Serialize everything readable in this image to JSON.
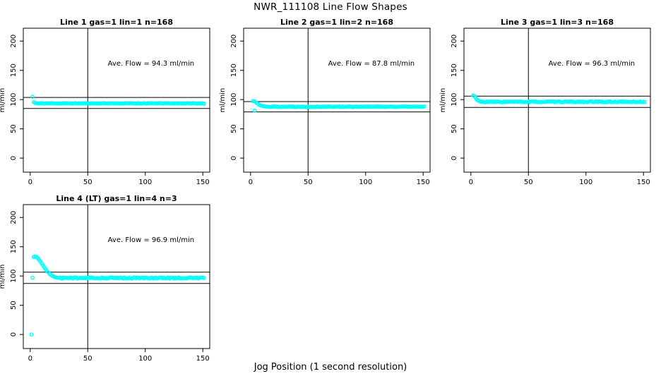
{
  "page": {
    "main_title": "NWR_111108  Line Flow Shapes",
    "x_axis_label": "Jog Position (1 second resolution)"
  },
  "colors": {
    "point": "#00ffff",
    "line": "#000000",
    "background": "#ffffff",
    "text": "#000000"
  },
  "chart_data": [
    {
      "type": "scatter",
      "title": "Line 1 gas=1 lin=1 n=168",
      "ylabel": "ml/min",
      "annotation": "Ave. Flow =  94.3  ml/min",
      "ave_flow_ml_min": 94.3,
      "xlim": [
        -6,
        156
      ],
      "ylim": [
        -24,
        222
      ],
      "xticks": [
        0,
        50,
        100,
        150
      ],
      "yticks": [
        0,
        50,
        100,
        150,
        200
      ],
      "vline_x": 50,
      "ref_lines_y": [
        103.7,
        84.9
      ],
      "annotation_xy": [
        105,
        158
      ],
      "points_explicit": [
        [
          2,
          105
        ],
        [
          3,
          95.5
        ],
        [
          4,
          94.6
        ],
        [
          5,
          94
        ]
      ],
      "flat_segment": {
        "x_from": 6,
        "x_to": 151,
        "y": 93.6,
        "jitter": 0.45,
        "seed": 11
      },
      "grid": false,
      "legend": null
    },
    {
      "type": "scatter",
      "title": "Line 2 gas=1 lin=2 n=168",
      "ylabel": "ml/min",
      "annotation": "Ave. Flow =  87.8  ml/min",
      "ave_flow_ml_min": 87.8,
      "xlim": [
        -6,
        156
      ],
      "ylim": [
        -24,
        222
      ],
      "xticks": [
        0,
        50,
        100,
        150
      ],
      "yticks": [
        0,
        50,
        100,
        150,
        200
      ],
      "vline_x": 50,
      "ref_lines_y": [
        96.6,
        79.0
      ],
      "annotation_xy": [
        105,
        158
      ],
      "points_explicit": [
        [
          2,
          97.5
        ],
        [
          3,
          97.2
        ],
        [
          3.5,
          81
        ],
        [
          4,
          96.2
        ],
        [
          5,
          94.8
        ],
        [
          6,
          93.2
        ],
        [
          7,
          91.8
        ],
        [
          8,
          90.7
        ],
        [
          9,
          89.8
        ],
        [
          10,
          89.2
        ],
        [
          11,
          88.7
        ],
        [
          12,
          88.4
        ],
        [
          13,
          88.2
        ],
        [
          14,
          88
        ]
      ],
      "flat_segment": {
        "x_from": 15,
        "x_to": 151,
        "y": 87.8,
        "jitter": 0.6,
        "seed": 22
      },
      "grid": false,
      "legend": null
    },
    {
      "type": "scatter",
      "title": "Line 3 gas=1 lin=3 n=168",
      "ylabel": "ml/min",
      "annotation": "Ave. Flow =  96.3  ml/min",
      "ave_flow_ml_min": 96.3,
      "xlim": [
        -6,
        156
      ],
      "ylim": [
        -24,
        222
      ],
      "xticks": [
        0,
        50,
        100,
        150
      ],
      "yticks": [
        0,
        50,
        100,
        150,
        200
      ],
      "vline_x": 50,
      "ref_lines_y": [
        105.9,
        86.7
      ],
      "annotation_xy": [
        105,
        158
      ],
      "points_explicit": [
        [
          2,
          107
        ],
        [
          3,
          106.2
        ],
        [
          4,
          103.5
        ],
        [
          5,
          100.8
        ],
        [
          6,
          98.8
        ],
        [
          7,
          97.5
        ],
        [
          8,
          96.8
        ]
      ],
      "flat_segment": {
        "x_from": 9,
        "x_to": 151,
        "y": 96.2,
        "jitter": 0.8,
        "seed": 33
      },
      "grid": false,
      "legend": null
    },
    {
      "type": "scatter",
      "title": "Line 4 (LT) gas=1 lin=4 n=3",
      "ylabel": "ml/min",
      "annotation": "Ave. Flow =  96.9  ml/min",
      "ave_flow_ml_min": 96.9,
      "xlim": [
        -6,
        156
      ],
      "ylim": [
        -24,
        222
      ],
      "xticks": [
        0,
        50,
        100,
        150
      ],
      "yticks": [
        0,
        50,
        100,
        150,
        200
      ],
      "vline_x": 50,
      "ref_lines_y": [
        106.6,
        87.2
      ],
      "annotation_xy": [
        105,
        158
      ],
      "points_explicit": [
        [
          1,
          0
        ],
        [
          2,
          97
        ],
        [
          3,
          132.5
        ],
        [
          4,
          133.5
        ],
        [
          5,
          133
        ],
        [
          6,
          131.5
        ],
        [
          7,
          129.5
        ],
        [
          8,
          127
        ],
        [
          9,
          124.5
        ],
        [
          10,
          121.5
        ],
        [
          11,
          118.5
        ],
        [
          12,
          115.5
        ],
        [
          13,
          112.5
        ],
        [
          14,
          110
        ],
        [
          15,
          107.5
        ],
        [
          16,
          105.5
        ],
        [
          17,
          103.5
        ],
        [
          18,
          102
        ],
        [
          19,
          100.5
        ],
        [
          20,
          99.5
        ],
        [
          21,
          98.6
        ],
        [
          22,
          98
        ],
        [
          23,
          97.4
        ],
        [
          24,
          97
        ],
        [
          25,
          96.8
        ]
      ],
      "flat_segment": {
        "x_from": 26,
        "x_to": 151,
        "y": 96.6,
        "jitter": 1.1,
        "seed": 44
      },
      "grid": false,
      "legend": null
    }
  ]
}
